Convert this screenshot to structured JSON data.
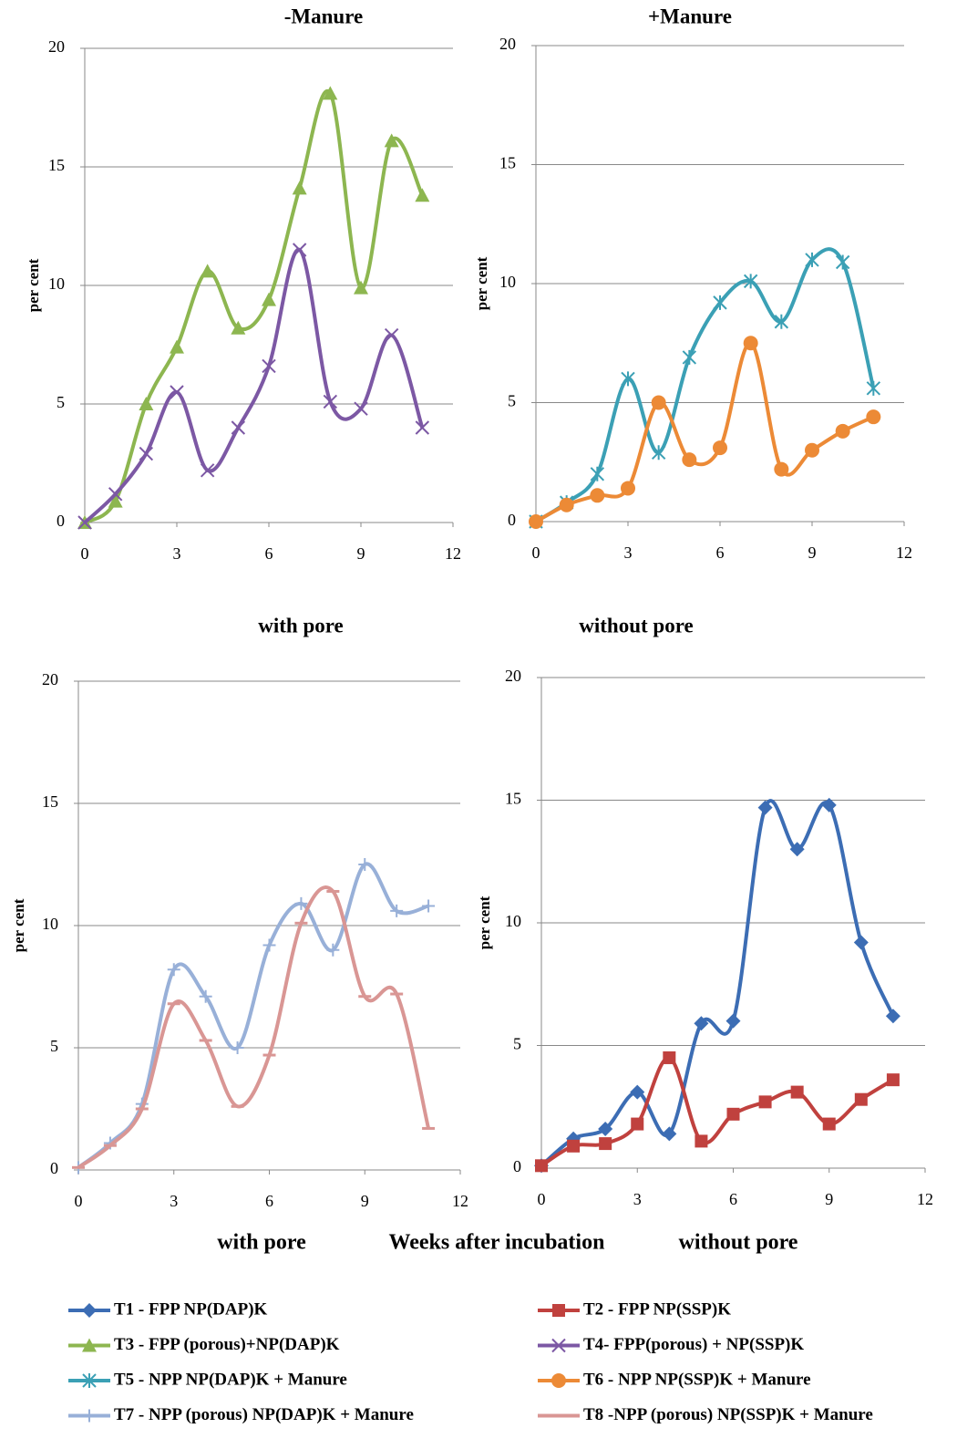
{
  "chart_data": [
    {
      "type": "line",
      "title": "-Manure",
      "y_label": "per cent",
      "x": [
        0,
        1,
        2,
        3,
        4,
        5,
        6,
        7,
        8,
        9,
        10,
        11
      ],
      "xlim": [
        0,
        12
      ],
      "xticks": [
        0,
        3,
        6,
        9,
        12
      ],
      "ylim": [
        0,
        20
      ],
      "yticks": [
        0,
        5,
        10,
        15,
        20
      ],
      "grid": true,
      "series": [
        {
          "name": "T3 - FPP (porous)+NP(DAP)K",
          "color": "#8db650",
          "marker": "triangle",
          "values": [
            0,
            0.9,
            5,
            7.4,
            10.6,
            8.2,
            9.4,
            14.1,
            18.1,
            9.9,
            16.1,
            13.8
          ]
        },
        {
          "name": "T4- FPP(porous) + NP(SSP)K",
          "color": "#7c58a4",
          "marker": "x",
          "values": [
            0,
            1.2,
            2.9,
            5.5,
            2.2,
            4,
            6.6,
            11.5,
            5.1,
            4.8,
            7.9,
            4
          ]
        }
      ]
    },
    {
      "type": "line",
      "title": "+Manure",
      "y_label": "per cent",
      "x": [
        0,
        1,
        2,
        3,
        4,
        5,
        6,
        7,
        8,
        9,
        10,
        11
      ],
      "xlim": [
        0,
        12
      ],
      "xticks": [
        0,
        3,
        6,
        9,
        12
      ],
      "ylim": [
        0,
        20
      ],
      "yticks": [
        0,
        5,
        10,
        15,
        20
      ],
      "grid": true,
      "series": [
        {
          "name": "T5 - NPP NP(DAP)K  + Manure",
          "color": "#3ba0b5",
          "marker": "asterisk",
          "values": [
            0,
            0.8,
            2,
            6,
            2.9,
            6.9,
            9.2,
            10.1,
            8.4,
            11,
            10.9,
            5.6
          ]
        },
        {
          "name": "T6 - NPP NP(SSP)K  + Manure",
          "color": "#ec8a36",
          "marker": "circle",
          "values": [
            0,
            0.7,
            1.1,
            1.4,
            5,
            2.6,
            3.1,
            7.5,
            2.2,
            3,
            3.8,
            4.4
          ]
        }
      ]
    },
    {
      "type": "line",
      "title": "with pore",
      "y_label": "per cent",
      "x": [
        0,
        1,
        2,
        3,
        4,
        5,
        6,
        7,
        8,
        9,
        10,
        11
      ],
      "xlim": [
        0,
        12
      ],
      "xticks": [
        0,
        3,
        6,
        9,
        12
      ],
      "ylim": [
        0,
        20
      ],
      "yticks": [
        0,
        5,
        10,
        15,
        20
      ],
      "grid": true,
      "series": [
        {
          "name": "T7 - NPP (porous) NP(DAP)K  + Manure",
          "color": "#98b0d8",
          "marker": "plus",
          "values": [
            0.1,
            1.1,
            2.7,
            8.2,
            7.1,
            5,
            9.2,
            10.9,
            9,
            12.5,
            10.6,
            10.8
          ]
        },
        {
          "name": "T8 -NPP (porous) NP(SSP)K + Manure",
          "color": "#d99694",
          "marker": "dash",
          "values": [
            0.1,
            1,
            2.5,
            6.8,
            5.3,
            2.6,
            4.7,
            10.1,
            11.4,
            7.1,
            7.2,
            1.7
          ]
        }
      ]
    },
    {
      "type": "line",
      "title": "without pore",
      "y_label": "per cent",
      "x": [
        0,
        1,
        2,
        3,
        4,
        5,
        6,
        7,
        8,
        9,
        10,
        11
      ],
      "xlim": [
        0,
        12
      ],
      "xticks": [
        0,
        3,
        6,
        9,
        12
      ],
      "ylim": [
        0,
        20
      ],
      "yticks": [
        0,
        5,
        10,
        15,
        20
      ],
      "grid": true,
      "series": [
        {
          "name": "T1 - FPP  NP(DAP)K",
          "color": "#3c6db4",
          "marker": "diamond",
          "values": [
            0.1,
            1.2,
            1.6,
            3.1,
            1.4,
            5.9,
            6,
            14.7,
            13,
            14.8,
            9.2,
            6.2
          ]
        },
        {
          "name": "T2 - FPP NP(SSP)K",
          "color": "#c0413e",
          "marker": "square",
          "values": [
            0.1,
            0.9,
            1,
            1.8,
            4.5,
            1.1,
            2.2,
            2.7,
            3.1,
            1.8,
            2.8,
            3.6
          ]
        }
      ]
    }
  ],
  "footer": {
    "left": "with pore",
    "x_label": "Weeks after incubation",
    "right": "without pore"
  }
}
